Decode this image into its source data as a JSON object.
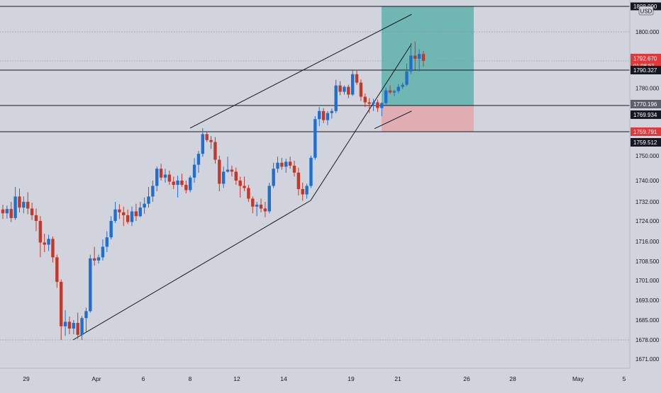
{
  "currency": "USD",
  "colors": {
    "background": "#d1d4dc",
    "up": "#1f6fd1",
    "down": "#c0392b",
    "target_zone": "#4fada5",
    "stop_zone": "#e3a6ac",
    "current_price_tag": "#e0393c",
    "line_tag": "#131722"
  },
  "chart_data": {
    "type": "candlestick",
    "symbol_currency": "USD",
    "y_tick_labels": [
      "1800.000",
      "1780.000",
      "1750.000",
      "1740.000",
      "1732.000",
      "1724.000",
      "1716.000",
      "1708.500",
      "1701.000",
      "1693.000",
      "1685.000",
      "1678.000",
      "1671.000"
    ],
    "x_tick_labels": [
      "29",
      "Apr",
      "6",
      "8",
      "12",
      "14",
      "19",
      "21",
      "26",
      "28",
      "May",
      "5"
    ],
    "price_tags": {
      "current_price": "1792.670",
      "countdown": "01:08:52",
      "top_line": "1808.000",
      "level_1": "1790.327",
      "level_2": "1770.196",
      "level_3": "1769.934",
      "level_4": "1759.791",
      "level_5": "1759.512"
    },
    "horizontal_lines": [
      1808.0,
      1790.327,
      1770.196,
      1759.791
    ],
    "dotted_lines": [
      1800.0,
      1792.67,
      1678.0
    ],
    "position_tool": {
      "entry": 1770.196,
      "target": 1808.0,
      "stop": 1759.791,
      "target_zone_color": "#4fada5",
      "stop_zone_color": "#e3a6ac"
    },
    "trendlines": [
      {
        "from": {
          "date": "2021-03-31",
          "price": 1678.0
        },
        "to": {
          "date": "2021-04-16",
          "price": 1732.5
        }
      },
      {
        "from": {
          "date": "2021-04-16",
          "price": 1732.5
        },
        "to": {
          "date": "2021-04-22",
          "price": 1797.0
        }
      },
      {
        "from": {
          "date": "2021-04-08",
          "price": 1761.2
        },
        "to": {
          "date": "2021-04-22",
          "price": 1805.5
        }
      },
      {
        "from": {
          "date": "2021-04-20",
          "price": 1761.0
        },
        "to": {
          "date": "2021-04-22",
          "price": 1768.0
        }
      }
    ],
    "candles": [
      {
        "o": 1728.8,
        "h": 1730.8,
        "l": 1724.8,
        "c": 1727.2
      },
      {
        "o": 1727.2,
        "h": 1730.4,
        "l": 1725.0,
        "c": 1729.0
      },
      {
        "o": 1729.0,
        "h": 1732.0,
        "l": 1723.6,
        "c": 1725.2
      },
      {
        "o": 1725.2,
        "h": 1737.6,
        "l": 1724.4,
        "c": 1734.0
      },
      {
        "o": 1734.0,
        "h": 1737.0,
        "l": 1727.6,
        "c": 1729.6
      },
      {
        "o": 1729.6,
        "h": 1734.0,
        "l": 1727.2,
        "c": 1732.0
      },
      {
        "o": 1732.0,
        "h": 1735.6,
        "l": 1726.8,
        "c": 1729.2
      },
      {
        "o": 1729.2,
        "h": 1731.6,
        "l": 1724.4,
        "c": 1726.4
      },
      {
        "o": 1726.4,
        "h": 1729.2,
        "l": 1720.0,
        "c": 1724.0
      },
      {
        "o": 1724.0,
        "h": 1726.0,
        "l": 1710.0,
        "c": 1715.6
      },
      {
        "o": 1715.6,
        "h": 1719.0,
        "l": 1712.0,
        "c": 1714.8
      },
      {
        "o": 1714.8,
        "h": 1718.6,
        "l": 1712.4,
        "c": 1717.0
      },
      {
        "o": 1717.0,
        "h": 1718.0,
        "l": 1708.0,
        "c": 1710.0
      },
      {
        "o": 1710.0,
        "h": 1711.0,
        "l": 1698.0,
        "c": 1700.4
      },
      {
        "o": 1700.4,
        "h": 1701.4,
        "l": 1678.0,
        "c": 1682.8
      },
      {
        "o": 1682.8,
        "h": 1689.0,
        "l": 1679.4,
        "c": 1684.4
      },
      {
        "o": 1684.4,
        "h": 1686.4,
        "l": 1680.0,
        "c": 1682.0
      },
      {
        "o": 1682.0,
        "h": 1685.0,
        "l": 1680.0,
        "c": 1684.0
      },
      {
        "o": 1684.0,
        "h": 1688.0,
        "l": 1678.4,
        "c": 1679.8
      },
      {
        "o": 1679.8,
        "h": 1686.6,
        "l": 1678.0,
        "c": 1685.8
      },
      {
        "o": 1685.8,
        "h": 1690.0,
        "l": 1680.8,
        "c": 1688.6
      },
      {
        "o": 1688.6,
        "h": 1711.0,
        "l": 1688.0,
        "c": 1709.6
      },
      {
        "o": 1709.6,
        "h": 1714.0,
        "l": 1706.8,
        "c": 1708.8
      },
      {
        "o": 1708.8,
        "h": 1711.0,
        "l": 1707.6,
        "c": 1710.0
      },
      {
        "o": 1710.0,
        "h": 1716.8,
        "l": 1708.8,
        "c": 1714.0
      },
      {
        "o": 1714.0,
        "h": 1720.0,
        "l": 1712.0,
        "c": 1717.6
      },
      {
        "o": 1717.6,
        "h": 1726.0,
        "l": 1716.8,
        "c": 1724.0
      },
      {
        "o": 1724.0,
        "h": 1732.0,
        "l": 1723.2,
        "c": 1728.8
      },
      {
        "o": 1728.8,
        "h": 1731.0,
        "l": 1724.8,
        "c": 1727.6
      },
      {
        "o": 1727.6,
        "h": 1730.0,
        "l": 1722.0,
        "c": 1726.4
      },
      {
        "o": 1726.4,
        "h": 1728.8,
        "l": 1722.8,
        "c": 1723.6
      },
      {
        "o": 1723.6,
        "h": 1730.0,
        "l": 1722.0,
        "c": 1728.0
      },
      {
        "o": 1728.0,
        "h": 1731.2,
        "l": 1724.0,
        "c": 1726.0
      },
      {
        "o": 1726.0,
        "h": 1732.0,
        "l": 1725.6,
        "c": 1729.6
      },
      {
        "o": 1729.6,
        "h": 1733.6,
        "l": 1727.0,
        "c": 1731.2
      },
      {
        "o": 1731.2,
        "h": 1737.6,
        "l": 1729.6,
        "c": 1734.0
      },
      {
        "o": 1734.0,
        "h": 1740.0,
        "l": 1732.0,
        "c": 1738.0
      },
      {
        "o": 1738.0,
        "h": 1745.6,
        "l": 1736.0,
        "c": 1744.8
      },
      {
        "o": 1744.8,
        "h": 1746.8,
        "l": 1740.0,
        "c": 1741.2
      },
      {
        "o": 1741.2,
        "h": 1744.8,
        "l": 1739.2,
        "c": 1742.4
      },
      {
        "o": 1742.4,
        "h": 1744.0,
        "l": 1738.4,
        "c": 1739.6
      },
      {
        "o": 1739.6,
        "h": 1741.6,
        "l": 1736.8,
        "c": 1738.4
      },
      {
        "o": 1738.4,
        "h": 1742.0,
        "l": 1733.6,
        "c": 1740.0
      },
      {
        "o": 1740.0,
        "h": 1742.8,
        "l": 1737.6,
        "c": 1738.4
      },
      {
        "o": 1738.4,
        "h": 1740.0,
        "l": 1735.2,
        "c": 1736.4
      },
      {
        "o": 1736.4,
        "h": 1742.0,
        "l": 1735.6,
        "c": 1741.2
      },
      {
        "o": 1741.2,
        "h": 1749.0,
        "l": 1739.2,
        "c": 1746.4
      },
      {
        "o": 1746.4,
        "h": 1752.0,
        "l": 1743.2,
        "c": 1750.8
      },
      {
        "o": 1750.8,
        "h": 1761.2,
        "l": 1749.6,
        "c": 1758.8
      },
      {
        "o": 1758.8,
        "h": 1760.0,
        "l": 1755.6,
        "c": 1756.4
      },
      {
        "o": 1756.4,
        "h": 1758.0,
        "l": 1752.8,
        "c": 1755.6
      },
      {
        "o": 1755.6,
        "h": 1757.6,
        "l": 1746.8,
        "c": 1748.4
      },
      {
        "o": 1748.4,
        "h": 1750.0,
        "l": 1736.0,
        "c": 1738.8
      },
      {
        "o": 1738.8,
        "h": 1745.6,
        "l": 1737.2,
        "c": 1743.6
      },
      {
        "o": 1743.6,
        "h": 1749.6,
        "l": 1743.2,
        "c": 1744.4
      },
      {
        "o": 1744.4,
        "h": 1746.0,
        "l": 1741.6,
        "c": 1743.6
      },
      {
        "o": 1743.6,
        "h": 1745.2,
        "l": 1738.4,
        "c": 1740.0
      },
      {
        "o": 1740.0,
        "h": 1741.6,
        "l": 1733.6,
        "c": 1738.0
      },
      {
        "o": 1738.0,
        "h": 1741.6,
        "l": 1736.0,
        "c": 1737.2
      },
      {
        "o": 1737.2,
        "h": 1738.4,
        "l": 1732.0,
        "c": 1733.2
      },
      {
        "o": 1733.2,
        "h": 1734.0,
        "l": 1727.2,
        "c": 1730.0
      },
      {
        "o": 1730.0,
        "h": 1732.0,
        "l": 1726.0,
        "c": 1730.8
      },
      {
        "o": 1730.8,
        "h": 1733.2,
        "l": 1727.6,
        "c": 1729.2
      },
      {
        "o": 1729.2,
        "h": 1732.0,
        "l": 1725.6,
        "c": 1728.0
      },
      {
        "o": 1728.0,
        "h": 1739.2,
        "l": 1727.2,
        "c": 1738.0
      },
      {
        "o": 1738.0,
        "h": 1747.2,
        "l": 1737.2,
        "c": 1744.8
      },
      {
        "o": 1744.8,
        "h": 1749.6,
        "l": 1743.2,
        "c": 1747.2
      },
      {
        "o": 1747.2,
        "h": 1749.2,
        "l": 1744.4,
        "c": 1745.6
      },
      {
        "o": 1745.6,
        "h": 1748.8,
        "l": 1743.2,
        "c": 1747.6
      },
      {
        "o": 1747.6,
        "h": 1749.6,
        "l": 1744.8,
        "c": 1746.0
      },
      {
        "o": 1746.0,
        "h": 1748.0,
        "l": 1741.6,
        "c": 1743.2
      },
      {
        "o": 1743.2,
        "h": 1745.2,
        "l": 1734.4,
        "c": 1736.8
      },
      {
        "o": 1736.8,
        "h": 1739.2,
        "l": 1732.4,
        "c": 1734.8
      },
      {
        "o": 1734.8,
        "h": 1738.8,
        "l": 1733.2,
        "c": 1738.0
      },
      {
        "o": 1738.0,
        "h": 1750.0,
        "l": 1737.2,
        "c": 1749.2
      },
      {
        "o": 1749.2,
        "h": 1766.0,
        "l": 1748.4,
        "c": 1764.8
      },
      {
        "o": 1764.8,
        "h": 1769.6,
        "l": 1762.0,
        "c": 1768.0
      },
      {
        "o": 1768.0,
        "h": 1769.2,
        "l": 1763.2,
        "c": 1764.4
      },
      {
        "o": 1764.4,
        "h": 1768.0,
        "l": 1762.4,
        "c": 1767.2
      },
      {
        "o": 1767.2,
        "h": 1769.0,
        "l": 1765.0,
        "c": 1768.0
      },
      {
        "o": 1768.0,
        "h": 1784.8,
        "l": 1767.2,
        "c": 1781.6
      },
      {
        "o": 1781.6,
        "h": 1784.0,
        "l": 1776.0,
        "c": 1778.0
      },
      {
        "o": 1778.0,
        "h": 1781.6,
        "l": 1776.4,
        "c": 1780.8
      },
      {
        "o": 1780.8,
        "h": 1782.0,
        "l": 1774.4,
        "c": 1776.4
      },
      {
        "o": 1776.4,
        "h": 1790.0,
        "l": 1775.6,
        "c": 1788.0
      },
      {
        "o": 1788.0,
        "h": 1790.4,
        "l": 1782.0,
        "c": 1783.2
      },
      {
        "o": 1783.2,
        "h": 1785.0,
        "l": 1772.8,
        "c": 1775.2
      },
      {
        "o": 1775.2,
        "h": 1777.0,
        "l": 1769.6,
        "c": 1772.0
      },
      {
        "o": 1772.0,
        "h": 1774.4,
        "l": 1767.2,
        "c": 1771.2
      },
      {
        "o": 1771.2,
        "h": 1774.0,
        "l": 1768.0,
        "c": 1772.0
      },
      {
        "o": 1772.0,
        "h": 1773.6,
        "l": 1767.6,
        "c": 1769.2
      },
      {
        "o": 1769.2,
        "h": 1772.0,
        "l": 1766.0,
        "c": 1771.6
      },
      {
        "o": 1771.6,
        "h": 1780.4,
        "l": 1770.8,
        "c": 1778.8
      },
      {
        "o": 1778.8,
        "h": 1781.6,
        "l": 1776.8,
        "c": 1777.6
      },
      {
        "o": 1777.6,
        "h": 1779.2,
        "l": 1775.6,
        "c": 1778.4
      },
      {
        "o": 1778.4,
        "h": 1782.4,
        "l": 1777.2,
        "c": 1780.8
      },
      {
        "o": 1780.8,
        "h": 1783.2,
        "l": 1779.6,
        "c": 1782.0
      },
      {
        "o": 1782.0,
        "h": 1792.0,
        "l": 1781.2,
        "c": 1789.6
      },
      {
        "o": 1789.6,
        "h": 1797.2,
        "l": 1788.0,
        "c": 1794.0
      },
      {
        "o": 1794.0,
        "h": 1797.6,
        "l": 1790.4,
        "c": 1793.2
      },
      {
        "o": 1793.2,
        "h": 1795.6,
        "l": 1789.6,
        "c": 1794.4
      },
      {
        "o": 1794.4,
        "h": 1795.2,
        "l": 1791.2,
        "c": 1792.67
      }
    ]
  }
}
